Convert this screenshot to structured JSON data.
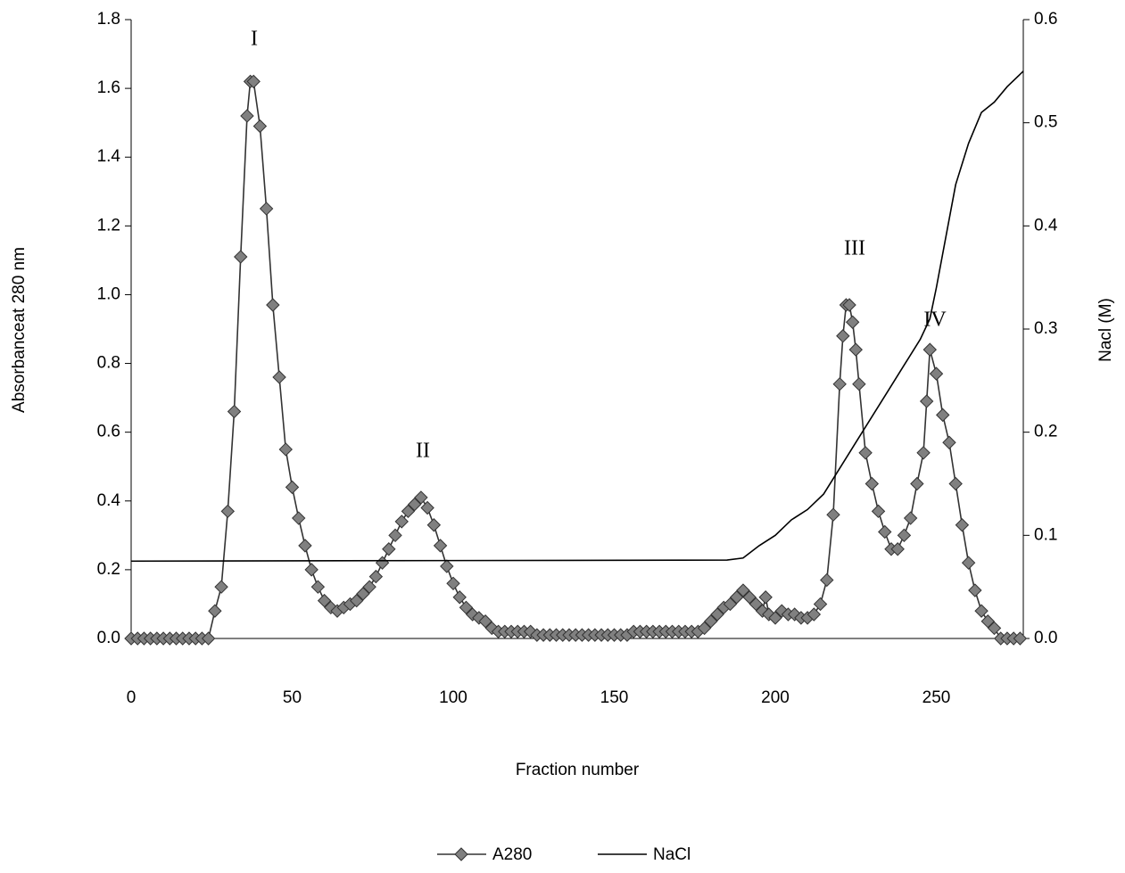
{
  "chart_data": {
    "type": "line",
    "x_label": "Fraction number",
    "y_label": "Absorbanceat 280 nm",
    "y2_label": "Nacl (M)",
    "xlim": [
      0,
      277
    ],
    "xticks": [
      0,
      50,
      100,
      150,
      200,
      250
    ],
    "ylim": [
      0,
      1.8
    ],
    "yticks": [
      {
        "value": 0,
        "label": "0.0"
      },
      0.2,
      0.4,
      0.6,
      0.8,
      {
        "value": 1,
        "label": "1.0"
      },
      1.2,
      1.4,
      1.6,
      1.8
    ],
    "y2lim": [
      0,
      0.6
    ],
    "y2ticks": [
      {
        "value": 0,
        "label": "0.0"
      },
      0.1,
      0.2,
      0.3,
      0.4,
      0.5,
      0.6
    ],
    "legend": "bottom",
    "annotations": [
      "I",
      "II",
      "III",
      "IV"
    ],
    "series": [
      {
        "name": "A280",
        "color": "#808080",
        "marker": "diamond",
        "x": [
          0,
          2,
          4,
          6,
          8,
          10,
          12,
          14,
          16,
          18,
          20,
          22,
          24,
          26,
          28,
          30,
          32,
          34,
          36,
          37,
          38,
          40,
          42,
          44,
          46,
          48,
          50,
          52,
          54,
          56,
          58,
          60,
          62,
          64,
          66,
          68,
          70,
          72,
          74,
          76,
          78,
          80,
          82,
          84,
          86,
          88,
          90,
          92,
          94,
          96,
          98,
          100,
          102,
          104,
          106,
          108,
          110,
          112,
          114,
          116,
          118,
          120,
          122,
          124,
          126,
          128,
          130,
          132,
          134,
          136,
          138,
          140,
          142,
          144,
          146,
          148,
          150,
          152,
          154,
          156,
          158,
          160,
          162,
          164,
          166,
          168,
          170,
          172,
          174,
          176,
          178,
          180,
          182,
          184,
          186,
          188,
          190,
          192,
          194,
          196,
          197,
          198,
          200,
          202,
          204,
          206,
          208,
          210,
          212,
          214,
          216,
          218,
          220,
          221,
          222,
          223,
          224,
          225,
          226,
          228,
          230,
          232,
          234,
          236,
          238,
          240,
          242,
          244,
          246,
          247,
          248,
          250,
          252,
          254,
          256,
          258,
          260,
          262,
          264,
          266,
          268,
          270,
          272,
          274,
          276
        ],
        "values": [
          0,
          0,
          0,
          0,
          0,
          0,
          0,
          0,
          0,
          0,
          0,
          0,
          0,
          0.08,
          0.15,
          0.37,
          0.66,
          1.11,
          1.52,
          1.62,
          1.62,
          1.49,
          1.25,
          0.97,
          0.76,
          0.55,
          0.44,
          0.35,
          0.27,
          0.2,
          0.15,
          0.11,
          0.09,
          0.08,
          0.09,
          0.1,
          0.11,
          0.13,
          0.15,
          0.18,
          0.22,
          0.26,
          0.3,
          0.34,
          0.37,
          0.39,
          0.41,
          0.38,
          0.33,
          0.27,
          0.21,
          0.16,
          0.12,
          0.09,
          0.07,
          0.06,
          0.05,
          0.03,
          0.02,
          0.02,
          0.02,
          0.02,
          0.02,
          0.02,
          0.01,
          0.01,
          0.01,
          0.01,
          0.01,
          0.01,
          0.01,
          0.01,
          0.01,
          0.01,
          0.01,
          0.01,
          0.01,
          0.01,
          0.01,
          0.02,
          0.02,
          0.02,
          0.02,
          0.02,
          0.02,
          0.02,
          0.02,
          0.02,
          0.02,
          0.02,
          0.03,
          0.05,
          0.07,
          0.09,
          0.1,
          0.12,
          0.14,
          0.12,
          0.1,
          0.08,
          0.12,
          0.07,
          0.06,
          0.08,
          0.07,
          0.07,
          0.06,
          0.06,
          0.07,
          0.1,
          0.17,
          0.36,
          0.74,
          0.88,
          0.97,
          0.97,
          0.92,
          0.84,
          0.74,
          0.54,
          0.45,
          0.37,
          0.31,
          0.26,
          0.26,
          0.3,
          0.35,
          0.45,
          0.54,
          0.69,
          0.84,
          0.77,
          0.65,
          0.57,
          0.45,
          0.33,
          0.22,
          0.14,
          0.08,
          0.05,
          0.03,
          0,
          0,
          0,
          0
        ]
      },
      {
        "name": "NaCl",
        "color": "#000000",
        "axis": "y2",
        "x": [
          0,
          185,
          190,
          195,
          200,
          205,
          210,
          215,
          220,
          225,
          230,
          235,
          240,
          245,
          248,
          250,
          253,
          256,
          260,
          264,
          268,
          272,
          277
        ],
        "values": [
          0.075,
          0.076,
          0.078,
          0.09,
          0.1,
          0.115,
          0.125,
          0.14,
          0.165,
          0.19,
          0.215,
          0.24,
          0.265,
          0.29,
          0.31,
          0.34,
          0.39,
          0.44,
          0.48,
          0.51,
          0.52,
          0.535,
          0.55
        ]
      }
    ]
  }
}
